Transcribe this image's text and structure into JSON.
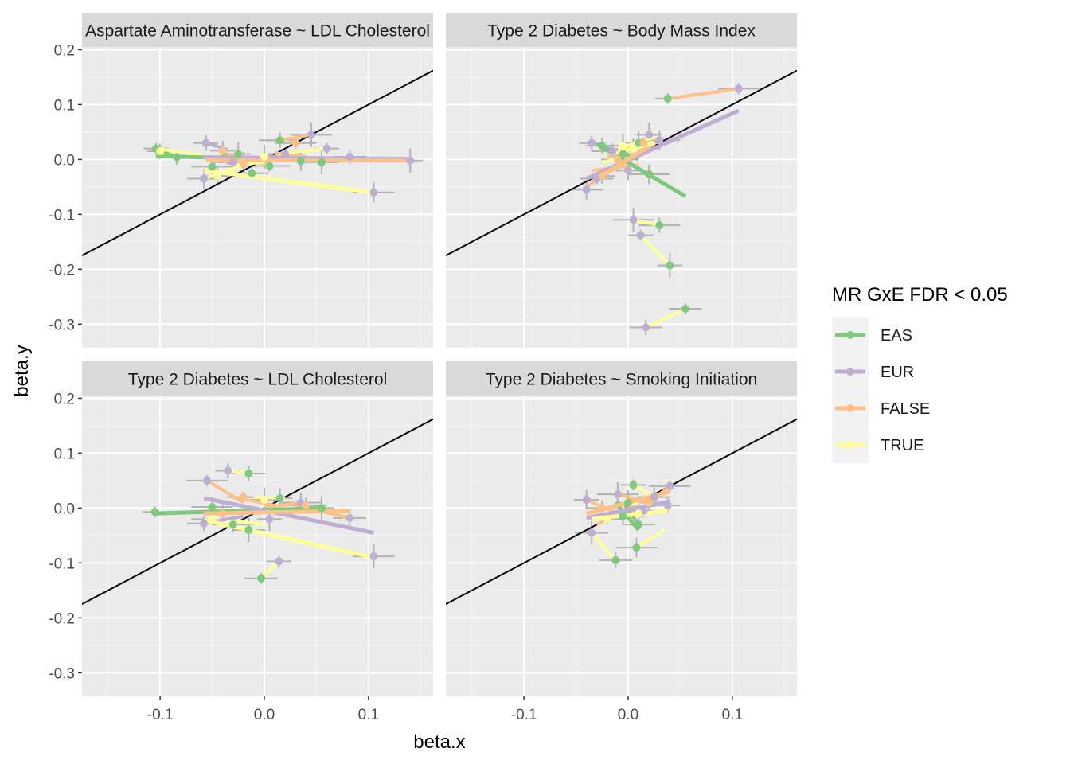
{
  "chart_data": {
    "type": "scatter",
    "xlabel": "beta.x",
    "ylabel": "beta.y",
    "xlim": [
      -0.175,
      0.162
    ],
    "ylim": [
      -0.343,
      0.205
    ],
    "x_ticks": [
      -0.1,
      0.0,
      0.1
    ],
    "x_tick_labels": [
      "-0.1",
      "0.0",
      "0.1"
    ],
    "y_ticks": [
      0.2,
      0.1,
      0.0,
      -0.1,
      -0.2,
      -0.3
    ],
    "y_tick_labels": [
      "0.2",
      "0.1",
      "0.0",
      "-0.1",
      "-0.2",
      "-0.3"
    ],
    "reference_line": {
      "slope": 1,
      "intercept": 0
    },
    "legend": {
      "title": "MR GxE FDR < 0.05",
      "position": "right",
      "entries": [
        {
          "name": "EAS",
          "color": "#7fc97f"
        },
        {
          "name": "EUR",
          "color": "#beaed4"
        },
        {
          "name": "FALSE",
          "color": "#fdc086"
        },
        {
          "name": "TRUE",
          "color": "#ffff99"
        }
      ]
    },
    "panels": [
      {
        "title": "Aspartate Aminotransferase ~ LDL Cholesterol",
        "points": [
          {
            "g": "EAS",
            "x": -0.104,
            "y": 0.02
          },
          {
            "g": "EAS",
            "x": -0.084,
            "y": 0.004
          },
          {
            "g": "EAS",
            "x": -0.05,
            "y": -0.013
          },
          {
            "g": "EAS",
            "x": -0.025,
            "y": 0.01
          },
          {
            "g": "EAS",
            "x": -0.012,
            "y": -0.025
          },
          {
            "g": "EAS",
            "x": 0.015,
            "y": 0.035
          },
          {
            "g": "EAS",
            "x": 0.035,
            "y": -0.003
          },
          {
            "g": "EAS",
            "x": 0.055,
            "y": -0.005
          },
          {
            "g": "EAS",
            "x": 0.005,
            "y": -0.012
          },
          {
            "g": "EUR",
            "x": -0.056,
            "y": 0.03
          },
          {
            "g": "EUR",
            "x": -0.058,
            "y": -0.035
          },
          {
            "g": "EUR",
            "x": 0.045,
            "y": 0.045
          },
          {
            "g": "EUR",
            "x": 0.06,
            "y": 0.02
          },
          {
            "g": "EUR",
            "x": 0.082,
            "y": 0.005
          },
          {
            "g": "EUR",
            "x": 0.105,
            "y": -0.06
          },
          {
            "g": "EUR",
            "x": 0.14,
            "y": -0.002
          },
          {
            "g": "EUR",
            "x": 0.02,
            "y": 0.01
          },
          {
            "g": "EUR",
            "x": -0.03,
            "y": -0.005
          },
          {
            "g": "FALSE",
            "x": -0.04,
            "y": 0.016
          },
          {
            "g": "FALSE",
            "x": -0.02,
            "y": -0.008
          },
          {
            "g": "FALSE",
            "x": 0.03,
            "y": 0.03
          },
          {
            "g": "TRUE",
            "x": -0.1,
            "y": 0.015
          },
          {
            "g": "TRUE",
            "x": -0.045,
            "y": -0.03
          },
          {
            "g": "TRUE",
            "x": 0.0,
            "y": 0.005
          }
        ],
        "segments": [
          {
            "g": "EAS",
            "x1": -0.104,
            "y1": 0.02,
            "x2": -0.084,
            "y2": 0.004
          },
          {
            "g": "EAS",
            "x1": -0.04,
            "y1": 0.012,
            "x2": -0.02,
            "y2": -0.01
          },
          {
            "g": "EUR",
            "x1": -0.056,
            "y1": 0.03,
            "x2": -0.035,
            "y2": 0.018
          },
          {
            "g": "EUR",
            "x1": 0.0,
            "y1": 0.008,
            "x2": 0.03,
            "y2": 0.0
          },
          {
            "g": "FALSE",
            "x1": 0.015,
            "y1": 0.035,
            "x2": 0.045,
            "y2": 0.045
          },
          {
            "g": "FALSE",
            "x1": -0.035,
            "y1": 0.01,
            "x2": 0.005,
            "y2": -0.01
          },
          {
            "g": "FALSE",
            "x1": 0.01,
            "y1": 0.012,
            "x2": 0.04,
            "y2": 0.005
          },
          {
            "g": "TRUE",
            "x1": -0.104,
            "y1": 0.02,
            "x2": -0.06,
            "y2": 0.008
          },
          {
            "g": "TRUE",
            "x1": -0.058,
            "y1": -0.035,
            "x2": -0.02,
            "y2": -0.01
          },
          {
            "g": "TRUE",
            "x1": 0.02,
            "y1": 0.012,
            "x2": 0.06,
            "y2": 0.02
          },
          {
            "g": "TRUE",
            "x1": -0.03,
            "y1": -0.01,
            "x2": 0.0,
            "y2": -0.005
          }
        ],
        "fits": [
          {
            "g": "EAS",
            "x1": -0.104,
            "y1": 0.006,
            "x2": 0.058,
            "y2": -0.002
          },
          {
            "g": "EUR",
            "x1": -0.058,
            "y1": 0.004,
            "x2": 0.14,
            "y2": 0.001
          },
          {
            "g": "FALSE",
            "x1": -0.056,
            "y1": -0.001,
            "x2": 0.14,
            "y2": -0.002
          },
          {
            "g": "TRUE",
            "x1": -0.058,
            "y1": -0.02,
            "x2": 0.105,
            "y2": -0.06
          }
        ]
      },
      {
        "title": "Type 2 Diabetes ~ Body Mass Index",
        "points": [
          {
            "g": "EAS",
            "x": 0.038,
            "y": 0.111
          },
          {
            "g": "EAS",
            "x": -0.025,
            "y": 0.025
          },
          {
            "g": "EAS",
            "x": 0.02,
            "y": -0.027
          },
          {
            "g": "EAS",
            "x": 0.04,
            "y": -0.193
          },
          {
            "g": "EAS",
            "x": 0.055,
            "y": -0.272
          },
          {
            "g": "EAS",
            "x": 0.03,
            "y": -0.12
          },
          {
            "g": "EAS",
            "x": -0.005,
            "y": 0.01
          },
          {
            "g": "EAS",
            "x": 0.01,
            "y": 0.03
          },
          {
            "g": "EUR",
            "x": 0.106,
            "y": 0.129
          },
          {
            "g": "EUR",
            "x": -0.035,
            "y": 0.03
          },
          {
            "g": "EUR",
            "x": -0.04,
            "y": -0.055
          },
          {
            "g": "EUR",
            "x": 0.005,
            "y": -0.11
          },
          {
            "g": "EUR",
            "x": 0.012,
            "y": -0.138
          },
          {
            "g": "EUR",
            "x": 0.017,
            "y": -0.306
          },
          {
            "g": "EUR",
            "x": 0.03,
            "y": 0.035
          },
          {
            "g": "EUR",
            "x": 0.02,
            "y": 0.045
          },
          {
            "g": "EUR",
            "x": -0.03,
            "y": -0.035
          },
          {
            "g": "EUR",
            "x": -0.015,
            "y": 0.015
          },
          {
            "g": "EUR",
            "x": 0.0,
            "y": -0.02
          },
          {
            "g": "FALSE",
            "x": -0.01,
            "y": 0.0
          },
          {
            "g": "FALSE",
            "x": 0.015,
            "y": 0.03
          },
          {
            "g": "FALSE",
            "x": -0.025,
            "y": -0.03
          },
          {
            "g": "TRUE",
            "x": 0.005,
            "y": 0.02
          },
          {
            "g": "TRUE",
            "x": -0.005,
            "y": 0.025
          }
        ],
        "segments": [
          {
            "g": "FALSE",
            "x1": 0.038,
            "y1": 0.111,
            "x2": 0.106,
            "y2": 0.129
          },
          {
            "g": "TRUE",
            "x1": 0.005,
            "y1": -0.11,
            "x2": 0.03,
            "y2": -0.12
          },
          {
            "g": "TRUE",
            "x1": 0.012,
            "y1": -0.138,
            "x2": 0.04,
            "y2": -0.193
          },
          {
            "g": "TRUE",
            "x1": 0.017,
            "y1": -0.306,
            "x2": 0.055,
            "y2": -0.272
          },
          {
            "g": "FALSE",
            "x1": -0.04,
            "y1": -0.05,
            "x2": 0.025,
            "y2": 0.03
          },
          {
            "g": "FALSE",
            "x1": -0.03,
            "y1": -0.03,
            "x2": 0.02,
            "y2": 0.015
          },
          {
            "g": "FALSE",
            "x1": -0.02,
            "y1": 0.005,
            "x2": 0.025,
            "y2": 0.04
          },
          {
            "g": "FALSE",
            "x1": -0.035,
            "y1": -0.02,
            "x2": 0.01,
            "y2": -0.01
          },
          {
            "g": "TRUE",
            "x1": -0.01,
            "y1": 0.02,
            "x2": 0.025,
            "y2": 0.04
          },
          {
            "g": "TRUE",
            "x1": -0.025,
            "y1": -0.005,
            "x2": 0.01,
            "y2": 0.01
          },
          {
            "g": "EUR",
            "x1": -0.035,
            "y1": 0.03,
            "x2": 0.0,
            "y2": 0.01
          },
          {
            "g": "EAS",
            "x1": -0.02,
            "y1": 0.02,
            "x2": 0.01,
            "y2": 0.0
          }
        ],
        "fits": [
          {
            "g": "EAS",
            "x1": -0.03,
            "y1": 0.028,
            "x2": 0.055,
            "y2": -0.067
          },
          {
            "g": "EUR",
            "x1": -0.04,
            "y1": -0.035,
            "x2": 0.106,
            "y2": 0.089
          },
          {
            "g": "FALSE",
            "x1": -0.035,
            "y1": -0.04,
            "x2": 0.03,
            "y2": 0.035
          },
          {
            "g": "TRUE",
            "x1": -0.015,
            "y1": 0.01,
            "x2": 0.025,
            "y2": 0.03
          }
        ]
      },
      {
        "title": "Type 2 Diabetes ~ LDL Cholesterol",
        "points": [
          {
            "g": "EAS",
            "x": -0.105,
            "y": -0.007
          },
          {
            "g": "EAS",
            "x": -0.015,
            "y": 0.063
          },
          {
            "g": "EAS",
            "x": -0.05,
            "y": 0.002
          },
          {
            "g": "EAS",
            "x": 0.055,
            "y": 0.0
          },
          {
            "g": "EAS",
            "x": -0.003,
            "y": -0.128
          },
          {
            "g": "EAS",
            "x": -0.03,
            "y": -0.03
          },
          {
            "g": "EAS",
            "x": 0.015,
            "y": 0.018
          },
          {
            "g": "EAS",
            "x": -0.015,
            "y": -0.04
          },
          {
            "g": "EUR",
            "x": -0.055,
            "y": 0.05
          },
          {
            "g": "EUR",
            "x": -0.035,
            "y": 0.068
          },
          {
            "g": "EUR",
            "x": 0.082,
            "y": -0.018
          },
          {
            "g": "EUR",
            "x": 0.105,
            "y": -0.088
          },
          {
            "g": "EUR",
            "x": 0.014,
            "y": -0.097
          },
          {
            "g": "EUR",
            "x": -0.058,
            "y": -0.028
          },
          {
            "g": "EUR",
            "x": 0.035,
            "y": 0.01
          },
          {
            "g": "EUR",
            "x": 0.005,
            "y": -0.02
          },
          {
            "g": "FALSE",
            "x": -0.02,
            "y": 0.02
          },
          {
            "g": "FALSE",
            "x": 0.04,
            "y": 0.005
          },
          {
            "g": "FALSE",
            "x": -0.04,
            "y": -0.01
          },
          {
            "g": "TRUE",
            "x": 0.0,
            "y": 0.015
          },
          {
            "g": "TRUE",
            "x": -0.05,
            "y": -0.02
          }
        ],
        "segments": [
          {
            "g": "TRUE",
            "x1": -0.035,
            "y1": 0.068,
            "x2": -0.015,
            "y2": 0.063
          },
          {
            "g": "TRUE",
            "x1": -0.003,
            "y1": -0.128,
            "x2": 0.014,
            "y2": -0.097
          },
          {
            "g": "FALSE",
            "x1": -0.055,
            "y1": 0.05,
            "x2": -0.02,
            "y2": 0.01
          },
          {
            "g": "FALSE",
            "x1": 0.03,
            "y1": 0.005,
            "x2": 0.082,
            "y2": -0.018
          },
          {
            "g": "FALSE",
            "x1": -0.03,
            "y1": 0.02,
            "x2": 0.01,
            "y2": 0.005
          },
          {
            "g": "TRUE",
            "x1": -0.01,
            "y1": 0.02,
            "x2": 0.02,
            "y2": 0.018
          },
          {
            "g": "TRUE",
            "x1": -0.05,
            "y1": -0.02,
            "x2": 0.0,
            "y2": -0.03
          },
          {
            "g": "EUR",
            "x1": -0.05,
            "y1": -0.025,
            "x2": -0.02,
            "y2": -0.015
          },
          {
            "g": "FALSE",
            "x1": 0.0,
            "y1": 0.0,
            "x2": 0.035,
            "y2": 0.01
          }
        ],
        "fits": [
          {
            "g": "EAS",
            "x1": -0.105,
            "y1": -0.01,
            "x2": 0.055,
            "y2": 0.0
          },
          {
            "g": "EUR",
            "x1": -0.058,
            "y1": 0.018,
            "x2": 0.105,
            "y2": -0.045
          },
          {
            "g": "FALSE",
            "x1": -0.058,
            "y1": -0.01,
            "x2": 0.082,
            "y2": -0.005
          },
          {
            "g": "TRUE",
            "x1": -0.058,
            "y1": -0.022,
            "x2": 0.105,
            "y2": -0.09
          }
        ]
      },
      {
        "title": "Type 2 Diabetes ~ Smoking Initiation",
        "points": [
          {
            "g": "EAS",
            "x": 0.005,
            "y": 0.042
          },
          {
            "g": "EAS",
            "x": -0.012,
            "y": -0.095
          },
          {
            "g": "EAS",
            "x": 0.008,
            "y": -0.072
          },
          {
            "g": "EAS",
            "x": 0.0,
            "y": 0.01
          },
          {
            "g": "EAS",
            "x": 0.01,
            "y": -0.03
          },
          {
            "g": "EAS",
            "x": -0.005,
            "y": -0.015
          },
          {
            "g": "EUR",
            "x": -0.04,
            "y": 0.015
          },
          {
            "g": "EUR",
            "x": -0.035,
            "y": -0.045
          },
          {
            "g": "EUR",
            "x": 0.04,
            "y": 0.04
          },
          {
            "g": "EUR",
            "x": 0.038,
            "y": 0.005
          },
          {
            "g": "EUR",
            "x": 0.025,
            "y": 0.02
          },
          {
            "g": "EUR",
            "x": -0.01,
            "y": 0.025
          },
          {
            "g": "EUR",
            "x": 0.015,
            "y": -0.005
          },
          {
            "g": "FALSE",
            "x": -0.025,
            "y": 0.0
          },
          {
            "g": "FALSE",
            "x": 0.02,
            "y": 0.01
          },
          {
            "g": "TRUE",
            "x": 0.01,
            "y": -0.01
          },
          {
            "g": "TRUE",
            "x": -0.02,
            "y": -0.02
          }
        ],
        "segments": [
          {
            "g": "TRUE",
            "x1": -0.035,
            "y1": -0.045,
            "x2": -0.012,
            "y2": -0.095
          },
          {
            "g": "TRUE",
            "x1": 0.008,
            "y1": -0.072,
            "x2": 0.035,
            "y2": -0.04
          },
          {
            "g": "TRUE",
            "x1": 0.005,
            "y1": 0.042,
            "x2": 0.025,
            "y2": 0.02
          },
          {
            "g": "FALSE",
            "x1": -0.04,
            "y1": 0.015,
            "x2": -0.01,
            "y2": -0.01
          },
          {
            "g": "FALSE",
            "x1": -0.01,
            "y1": 0.025,
            "x2": 0.03,
            "y2": 0.005
          },
          {
            "g": "FALSE",
            "x1": -0.03,
            "y1": -0.03,
            "x2": 0.02,
            "y2": 0.02
          },
          {
            "g": "FALSE",
            "x1": 0.0,
            "y1": -0.02,
            "x2": 0.04,
            "y2": 0.04
          },
          {
            "g": "TRUE",
            "x1": -0.035,
            "y1": -0.005,
            "x2": 0.01,
            "y2": 0.01
          },
          {
            "g": "TRUE",
            "x1": 0.0,
            "y1": -0.015,
            "x2": 0.038,
            "y2": -0.005
          },
          {
            "g": "EAS",
            "x1": -0.005,
            "y1": 0.01,
            "x2": 0.01,
            "y2": -0.03
          }
        ],
        "fits": [
          {
            "g": "EAS",
            "x1": -0.012,
            "y1": 0.01,
            "x2": 0.01,
            "y2": -0.04
          },
          {
            "g": "EUR",
            "x1": -0.04,
            "y1": -0.018,
            "x2": 0.04,
            "y2": 0.012
          },
          {
            "g": "FALSE",
            "x1": -0.04,
            "y1": -0.01,
            "x2": 0.04,
            "y2": 0.03
          },
          {
            "g": "TRUE",
            "x1": -0.035,
            "y1": -0.02,
            "x2": 0.038,
            "y2": -0.005
          }
        ]
      }
    ]
  }
}
